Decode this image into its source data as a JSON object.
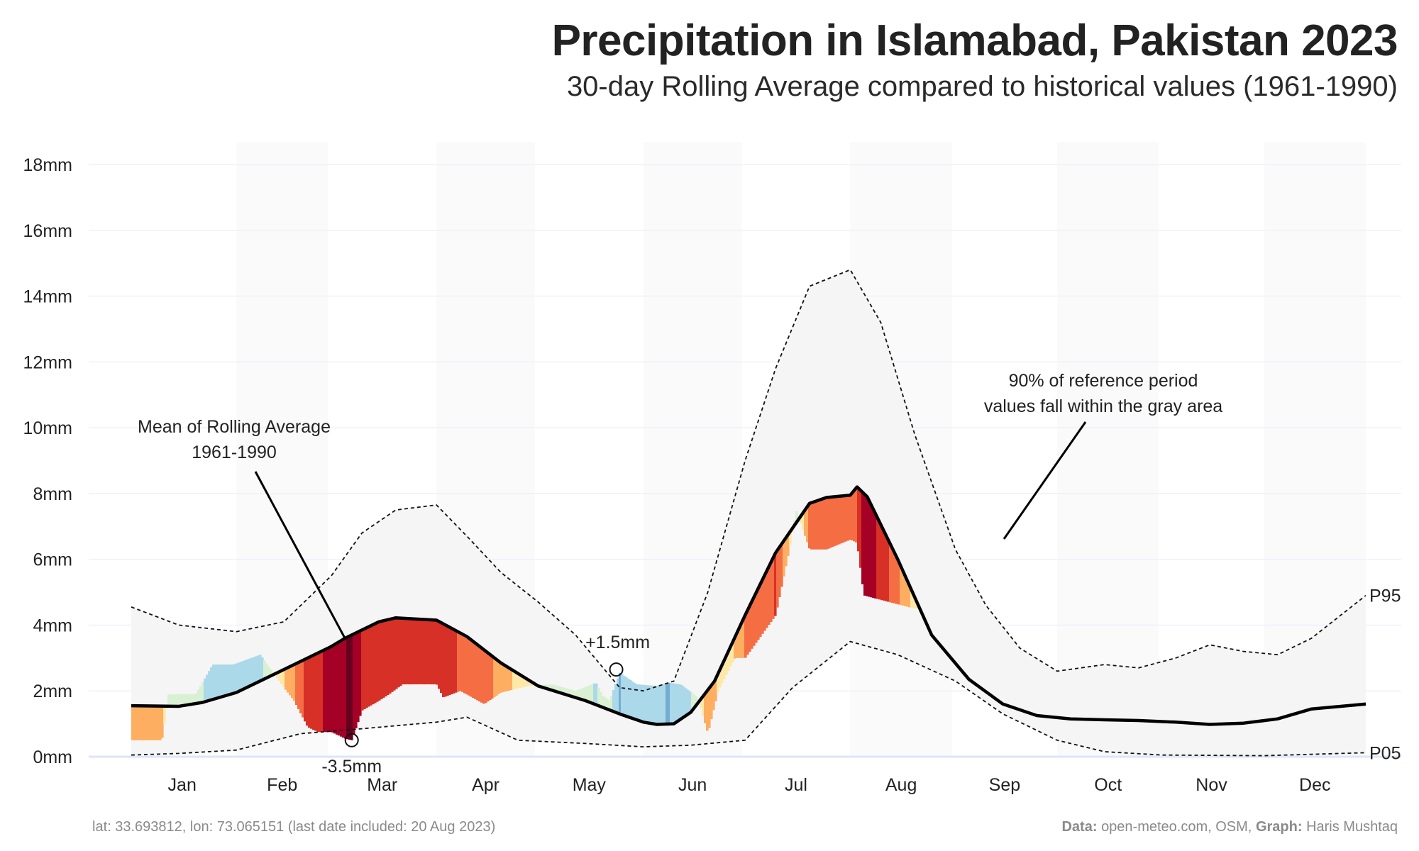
{
  "title": "Precipitation in Islamabad, Pakistan 2023",
  "subtitle": "30-day Rolling Average compared to historical values (1961-1990)",
  "footer": {
    "location": "lat: 33.693812, lon: 73.065151 (last date included: 20 Aug 2023)",
    "data_label": "Data:",
    "data_value": "open-meteo.com, OSM,",
    "graph_label": "Graph:",
    "graph_value": "Haris Mushtaq"
  },
  "colors": {
    "mean_line": "#000000",
    "band_fill": "#f5f5f5",
    "dry_scale": [
      "#fee8a8",
      "#fdae61",
      "#f46d43",
      "#d73027",
      "#a50026",
      "#67001f"
    ],
    "wet_scale": [
      "#d9f0d3",
      "#abd9e9",
      "#74add1",
      "#4575b4",
      "#313695",
      "#1a237e"
    ]
  },
  "chart_data": {
    "type": "area",
    "yticks": [
      "0mm",
      "2mm",
      "4mm",
      "6mm",
      "8mm",
      "10mm",
      "12mm",
      "14mm",
      "16mm",
      "18mm"
    ],
    "ylim": [
      0,
      18
    ],
    "xticks": [
      "Jan",
      "Feb",
      "Mar",
      "Apr",
      "May",
      "Jun",
      "Jul",
      "Aug",
      "Sep",
      "Oct",
      "Nov",
      "Dec"
    ],
    "xlim": [
      "2023-01-01",
      "2023-12-31"
    ],
    "mean": {
      "name": "Mean of Rolling Average 1961-1990",
      "x": [
        "2023-01-01",
        "2023-01-15",
        "2023-01-22",
        "2023-02-01",
        "2023-02-10",
        "2023-02-20",
        "2023-03-01",
        "2023-03-05",
        "2023-03-10",
        "2023-03-15",
        "2023-03-20",
        "2023-04-01",
        "2023-04-10",
        "2023-04-20",
        "2023-05-01",
        "2023-05-15",
        "2023-05-25",
        "2023-06-01",
        "2023-06-05",
        "2023-06-10",
        "2023-06-15",
        "2023-06-22",
        "2023-07-01",
        "2023-07-10",
        "2023-07-20",
        "2023-07-25",
        "2023-08-01",
        "2023-08-03",
        "2023-08-06",
        "2023-08-15",
        "2023-08-25",
        "2023-09-05",
        "2023-09-15",
        "2023-09-25",
        "2023-10-05",
        "2023-10-15",
        "2023-10-25",
        "2023-11-05",
        "2023-11-15",
        "2023-11-25",
        "2023-12-05",
        "2023-12-15",
        "2023-12-31"
      ],
      "y": [
        1.55,
        1.53,
        1.65,
        1.95,
        2.4,
        2.9,
        3.35,
        3.6,
        3.85,
        4.1,
        4.22,
        4.15,
        3.65,
        2.85,
        2.15,
        1.7,
        1.3,
        1.05,
        0.98,
        1.0,
        1.35,
        2.3,
        4.3,
        6.2,
        7.7,
        7.88,
        7.95,
        8.2,
        7.9,
        6.0,
        3.7,
        2.35,
        1.6,
        1.25,
        1.15,
        1.12,
        1.1,
        1.05,
        0.98,
        1.02,
        1.15,
        1.45,
        1.6
      ]
    },
    "p95": {
      "name": "P95",
      "x": [
        "2023-01-01",
        "2023-01-15",
        "2023-02-01",
        "2023-02-15",
        "2023-03-01",
        "2023-03-10",
        "2023-03-20",
        "2023-04-01",
        "2023-04-10",
        "2023-04-20",
        "2023-05-01",
        "2023-05-12",
        "2023-05-25",
        "2023-06-01",
        "2023-06-10",
        "2023-06-20",
        "2023-07-01",
        "2023-07-10",
        "2023-07-20",
        "2023-08-01",
        "2023-08-10",
        "2023-08-20",
        "2023-09-01",
        "2023-09-10",
        "2023-09-20",
        "2023-10-01",
        "2023-10-15",
        "2023-10-25",
        "2023-11-05",
        "2023-11-15",
        "2023-11-25",
        "2023-12-05",
        "2023-12-15",
        "2023-12-31"
      ],
      "y": [
        4.55,
        4.0,
        3.8,
        4.1,
        5.5,
        6.8,
        7.5,
        7.65,
        6.7,
        5.6,
        4.7,
        3.7,
        2.1,
        2.0,
        2.3,
        5.0,
        9.0,
        11.8,
        14.3,
        14.8,
        13.2,
        9.8,
        6.3,
        4.6,
        3.3,
        2.6,
        2.8,
        2.7,
        3.0,
        3.4,
        3.2,
        3.1,
        3.6,
        4.9
      ]
    },
    "p05": {
      "name": "P05",
      "x": [
        "2023-01-01",
        "2023-01-15",
        "2023-02-01",
        "2023-02-20",
        "2023-03-10",
        "2023-04-01",
        "2023-04-10",
        "2023-04-25",
        "2023-05-15",
        "2023-06-01",
        "2023-06-15",
        "2023-07-01",
        "2023-07-15",
        "2023-08-01",
        "2023-08-15",
        "2023-09-01",
        "2023-09-15",
        "2023-10-01",
        "2023-10-15",
        "2023-11-01",
        "2023-12-01",
        "2023-12-31"
      ],
      "y": [
        0.05,
        0.1,
        0.2,
        0.7,
        0.85,
        1.05,
        1.2,
        0.5,
        0.4,
        0.3,
        0.35,
        0.5,
        2.1,
        3.5,
        3.1,
        2.3,
        1.3,
        0.5,
        0.15,
        0.05,
        0.03,
        0.12
      ]
    },
    "actual_2023": {
      "x": [
        "2023-01-01",
        "2023-01-10",
        "2023-01-12",
        "2023-01-20",
        "2023-01-25",
        "2023-01-31",
        "2023-02-08",
        "2023-02-15",
        "2023-02-18",
        "2023-02-22",
        "2023-02-25",
        "2023-03-01",
        "2023-03-05",
        "2023-03-07",
        "2023-03-10",
        "2023-03-15",
        "2023-03-18",
        "2023-03-22",
        "2023-04-01",
        "2023-04-03",
        "2023-04-08",
        "2023-04-15",
        "2023-04-20",
        "2023-04-28",
        "2023-05-05",
        "2023-05-12",
        "2023-05-18",
        "2023-05-20",
        "2023-05-22",
        "2023-05-25",
        "2023-05-30",
        "2023-06-05",
        "2023-06-08",
        "2023-06-12",
        "2023-06-17",
        "2023-06-20",
        "2023-06-23",
        "2023-06-28",
        "2023-07-01",
        "2023-07-10",
        "2023-07-14",
        "2023-07-16",
        "2023-07-20",
        "2023-07-25",
        "2023-08-01",
        "2023-08-03",
        "2023-08-05",
        "2023-08-20"
      ],
      "y": [
        0.5,
        0.5,
        1.9,
        1.9,
        2.8,
        2.8,
        3.1,
        2.1,
        1.7,
        0.9,
        0.75,
        0.75,
        0.55,
        0.5,
        1.4,
        1.7,
        1.9,
        2.2,
        2.2,
        1.8,
        2.0,
        1.6,
        1.95,
        2.15,
        2.2,
        2.0,
        2.25,
        1.85,
        1.7,
        2.55,
        2.2,
        2.15,
        2.25,
        2.2,
        1.8,
        0.7,
        2.0,
        3.0,
        3.0,
        4.3,
        6.3,
        7.5,
        6.3,
        6.3,
        6.6,
        6.5,
        4.9,
        4.5
      ]
    },
    "annotations": [
      {
        "text": "-3.5mm",
        "x": "2023-03-07",
        "y": 0.5
      },
      {
        "text": "+1.5mm",
        "x": "2023-05-24",
        "y": 2.65
      }
    ],
    "labels": {
      "mean_lines": [
        "Mean of Rolling Average",
        "1961-1990"
      ],
      "band_lines": [
        "90% of reference period",
        "values fall within the gray area"
      ],
      "p95": "P95",
      "p05": "P05"
    },
    "grid": true
  }
}
